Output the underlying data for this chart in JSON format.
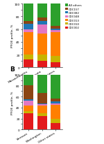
{
  "panel_A": {
    "categories": [
      "Massachusetts",
      "Minnesota",
      "Other states"
    ],
    "series": {
      "CDC002": [
        12,
        10,
        8
      ],
      "CDC010": [
        8,
        10,
        10
      ],
      "CDC013": [
        35,
        33,
        37
      ],
      "CDC048": [
        5,
        14,
        3
      ],
      "CDC082": [
        8,
        6,
        3
      ],
      "CDC157": [
        5,
        5,
        4
      ],
      "All others": [
        27,
        22,
        35
      ]
    }
  },
  "panel_B": {
    "categories": [
      "Vermont",
      "Washington",
      "Other states"
    ],
    "series": {
      "CDC002": [
        30,
        25,
        12
      ],
      "CDC010": [
        3,
        5,
        8
      ],
      "CDC013": [
        10,
        13,
        25
      ],
      "CDC048": [
        10,
        3,
        3
      ],
      "CDC082": [
        2,
        2,
        3
      ],
      "CDC157": [
        25,
        18,
        5
      ],
      "All others": [
        20,
        34,
        44
      ]
    }
  },
  "colors": {
    "CDC002": "#e31a1c",
    "CDC010": "#c8b400",
    "CDC013": "#ff7f00",
    "CDC048": "#e377c2",
    "CDC082": "#1f77b4",
    "CDC157": "#8B4513",
    "All others": "#2ca02c"
  },
  "legend_order": [
    "All others",
    "CDC157",
    "CDC082",
    "CDC048",
    "CDC013",
    "CDC010",
    "CDC002"
  ],
  "series_order": [
    "CDC002",
    "CDC010",
    "CDC013",
    "CDC048",
    "CDC082",
    "CDC157",
    "All others"
  ],
  "ylabel": "PFGE profile, %",
  "ylim": [
    0,
    100
  ],
  "yticks": [
    0,
    10,
    20,
    30,
    40,
    50,
    60,
    70,
    80,
    90,
    100
  ],
  "ytick_labels": [
    "0",
    "",
    "20",
    "",
    "40",
    "",
    "60",
    "",
    "80",
    "",
    "100"
  ]
}
